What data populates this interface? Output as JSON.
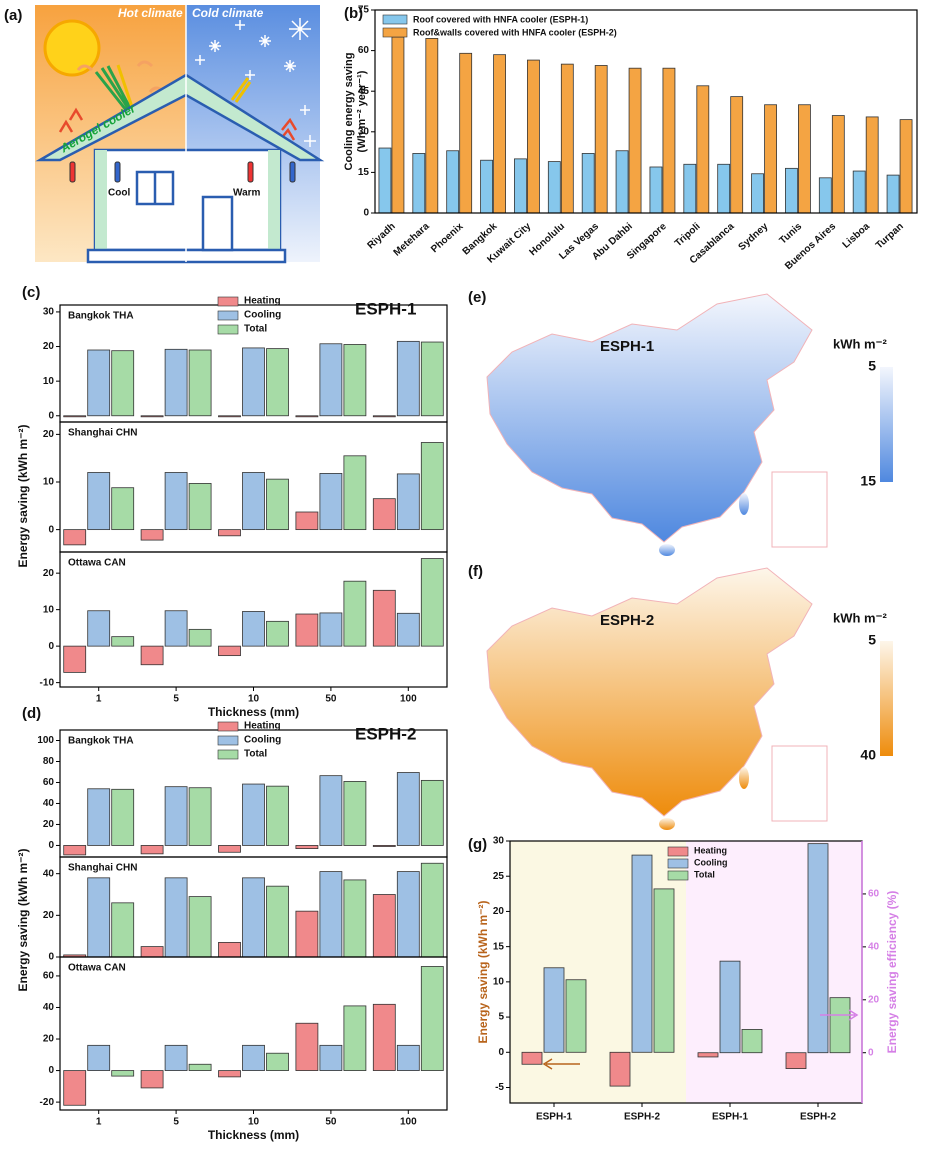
{
  "illustration": {
    "label": "(a)",
    "hot": "Hot climate",
    "cold": "Cold climate",
    "cooler": "Aerogel cooler",
    "cool": "Cool",
    "warm": "Warm"
  },
  "maps": [
    {
      "label": "(e)",
      "title": "ESPH-1",
      "colorbar_title": "kWh m⁻²",
      "clim": [
        5,
        15
      ],
      "ticks": [
        5,
        15
      ],
      "colors": [
        "#f3f6fd",
        "#4f88df"
      ]
    },
    {
      "label": "(f)",
      "title": "ESPH-2",
      "colorbar_title": "kWh m⁻²",
      "clim": [
        5,
        40
      ],
      "ticks": [
        5,
        40
      ],
      "colors": [
        "#fdf6ea",
        "#ee8c0c"
      ]
    }
  ],
  "chart_data": [
    {
      "type": "bar",
      "label": "(b)",
      "categories": [
        "Riyadh",
        "Metehara",
        "Phoenix",
        "Bangkok",
        "Kuwait City",
        "Honolulu",
        "Las Vegas",
        "Abu Dahbi",
        "Singapore",
        "Tripoli",
        "Casablanca",
        "Sydney",
        "Tunis",
        "Buenos Aires",
        "Lisboa",
        "Turpan"
      ],
      "series": [
        {
          "name": "Roof covered with HNFA cooler (ESPH-1)",
          "color": "#86c7ec",
          "values": [
            24,
            22,
            23,
            19.5,
            20,
            19,
            22,
            23,
            17,
            18,
            18,
            14.5,
            16.5,
            13,
            15.5,
            14
          ]
        },
        {
          "name": "Roof&walls covered with HNFA cooler (ESPH-2)",
          "color": "#f4a443",
          "values": [
            65,
            64.5,
            59,
            58.5,
            56.5,
            55,
            54.5,
            53.5,
            53.5,
            47,
            43,
            40,
            40,
            36,
            35.5,
            34.5
          ]
        }
      ],
      "ylabel": [
        "Cooling energy saving",
        "(Wh m⁻² year⁻¹)"
      ],
      "ylim": [
        0,
        75
      ],
      "yticks": [
        0,
        15,
        30,
        45,
        60,
        75
      ],
      "legend": "upper left"
    },
    {
      "type": "bar-panels",
      "label": "(c)",
      "annotation": "ESPH-1",
      "categories": [
        "1",
        "5",
        "10",
        "50",
        "100"
      ],
      "xlabel": "Thickness (mm)",
      "ylabel": "Energy saving (kWh m⁻²)",
      "series": [
        {
          "name": "Heating",
          "color": "#f0898b"
        },
        {
          "name": "Cooling",
          "color": "#9ec0e4"
        },
        {
          "name": "Total",
          "color": "#a6dba6"
        }
      ],
      "subplots": [
        {
          "title": "Bangkok THA",
          "ylim": [
            -1.8,
            32
          ],
          "yticks": [
            0,
            10,
            20,
            30
          ],
          "values": [
            [
              -0.3,
              -0.3,
              -0.3,
              -0.3,
              -0.3
            ],
            [
              19,
              19.2,
              19.6,
              20.8,
              21.5
            ],
            [
              18.8,
              19,
              19.4,
              20.6,
              21.3
            ]
          ]
        },
        {
          "title": "Shanghai CHN",
          "ylim": [
            -4.7,
            22.6
          ],
          "yticks": [
            0,
            10,
            20
          ],
          "values": [
            [
              -3.2,
              -2.2,
              -1.3,
              3.7,
              6.5
            ],
            [
              12,
              12,
              12,
              11.8,
              11.7
            ],
            [
              8.8,
              9.7,
              10.6,
              15.5,
              18.3
            ]
          ]
        },
        {
          "title": "Ottawa CAN",
          "ylim": [
            -11.2,
            25.8
          ],
          "yticks": [
            -10,
            0,
            10,
            20
          ],
          "values": [
            [
              -7.2,
              -5.1,
              -2.6,
              8.8,
              15.3
            ],
            [
              9.7,
              9.7,
              9.5,
              9.1,
              9
            ],
            [
              2.6,
              4.6,
              6.8,
              17.8,
              24
            ]
          ]
        }
      ]
    },
    {
      "type": "bar-panels",
      "label": "(d)",
      "annotation": "ESPH-2",
      "categories": [
        "1",
        "5",
        "10",
        "50",
        "100"
      ],
      "xlabel": "Thickness (mm)",
      "ylabel": "Energy saving (kWh m⁻²)",
      "series": [
        {
          "name": "Heating",
          "color": "#f0898b"
        },
        {
          "name": "Cooling",
          "color": "#9ec0e4"
        },
        {
          "name": "Total",
          "color": "#a6dba6"
        }
      ],
      "subplots": [
        {
          "title": "Bangkok THA",
          "ylim": [
            -11,
            110
          ],
          "yticks": [
            0,
            20,
            40,
            60,
            80,
            100
          ],
          "values": [
            [
              -9,
              -8,
              -6.5,
              -3,
              -1
            ],
            [
              54,
              56,
              58.5,
              66.5,
              69.5
            ],
            [
              53.5,
              55,
              56.5,
              61,
              62
            ]
          ]
        },
        {
          "title": "Shanghai CHN",
          "ylim": [
            0,
            48
          ],
          "yticks": [
            0,
            20,
            40
          ],
          "values": [
            [
              1,
              5,
              7,
              22,
              30
            ],
            [
              38,
              38,
              38,
              41,
              41
            ],
            [
              26,
              29,
              34,
              37,
              45
            ]
          ]
        },
        {
          "title": "Ottawa CAN",
          "ylim": [
            -25,
            72
          ],
          "yticks": [
            -20,
            0,
            20,
            40,
            60
          ],
          "values": [
            [
              -22,
              -11,
              -4,
              30,
              42
            ],
            [
              16,
              16,
              16,
              16,
              16
            ],
            [
              -3.5,
              4,
              11,
              41,
              66
            ]
          ]
        }
      ]
    },
    {
      "type": "dual-axis-bar",
      "label": "(g)",
      "categories": [
        "ESPH-1",
        "ESPH-2",
        "ESPH-1",
        "ESPH-2"
      ],
      "category_axes": [
        "y",
        "y",
        "y2",
        "y2"
      ],
      "series": [
        {
          "name": "Heating",
          "color": "#f0898b",
          "values": [
            -1.7,
            -4.8,
            -1.6,
            -6
          ]
        },
        {
          "name": "Cooling",
          "color": "#9ec0e4",
          "values": [
            12,
            28,
            34.6,
            79
          ]
        },
        {
          "name": "Total",
          "color": "#a6dba6",
          "values": [
            10.3,
            23.2,
            8.8,
            20.8
          ]
        }
      ],
      "ylabel": "Energy saving (kWh m⁻²)",
      "y2label": "Energy saving efficiency (%)",
      "ylim": [
        -7.2,
        30
      ],
      "yticks": [
        -5,
        0,
        5,
        10,
        15,
        20,
        25,
        30
      ],
      "y2lim": [
        -19,
        80
      ],
      "y2ticks": [
        0,
        20,
        40,
        60
      ],
      "ylabel_color": "#b8641c",
      "y2label_color": "#d57fe6",
      "background_colors": [
        "#fbf8e3",
        "#fdeefd"
      ]
    }
  ]
}
